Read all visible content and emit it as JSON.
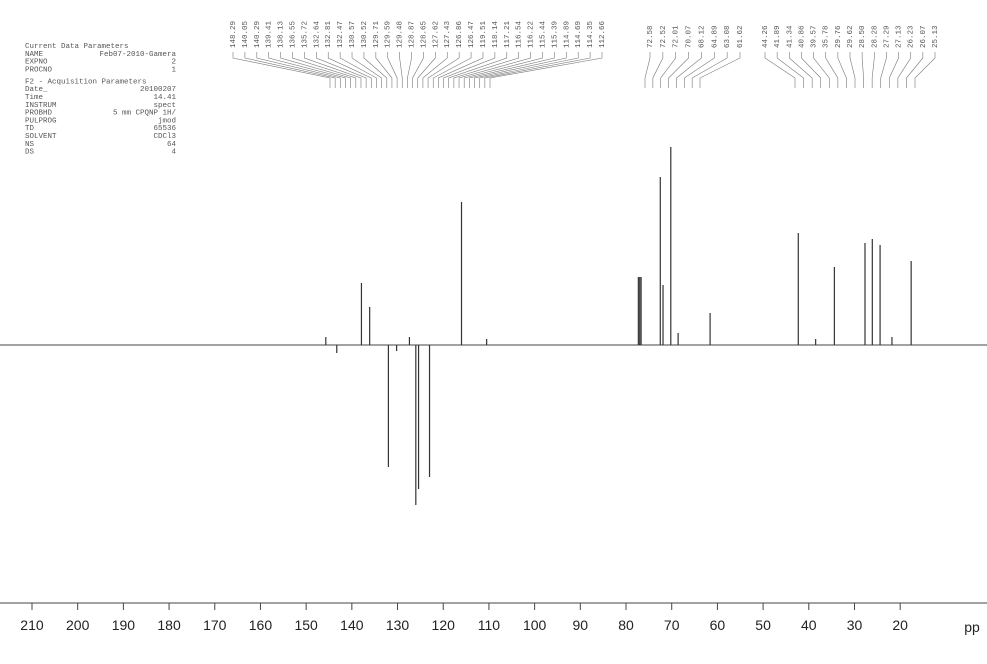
{
  "chart_data": {
    "type": "stick",
    "x_label": "pp",
    "xlim": [
      217,
      1
    ],
    "ylim": [
      -130,
      100
    ],
    "xticks": [
      210,
      200,
      190,
      180,
      170,
      160,
      150,
      140,
      130,
      120,
      110,
      100,
      90,
      80,
      70,
      60,
      50,
      40,
      30,
      20
    ],
    "color": "#333333",
    "x": [
      145.7,
      143.3,
      137.9,
      136.1,
      132.0,
      130.2,
      127.4,
      126.0,
      125.4,
      123.0,
      116.0,
      110.5,
      77.3,
      77.0,
      76.7,
      72.5,
      71.9,
      70.2,
      68.6,
      61.6,
      42.3,
      38.5,
      34.4,
      27.7,
      26.1,
      24.4,
      21.8,
      17.6
    ],
    "values": [
      4,
      -4,
      31,
      19,
      -61,
      -3,
      4,
      -80,
      -72,
      -66,
      71.5,
      3,
      34,
      34,
      34,
      84,
      30,
      99,
      6,
      16,
      56,
      3,
      39,
      51,
      53,
      50,
      4,
      42
    ],
    "peak_labels": [
      [
        "148.29",
        "140.05",
        "140.29",
        "139.41",
        "138.13",
        "136.55",
        "135.72",
        "132.64",
        "132.81",
        "132.47",
        "130.57",
        "130.52",
        "129.71",
        "129.59",
        "129.48",
        "128.87",
        "128.65",
        "127.62",
        "127.43",
        "126.86",
        "126.47",
        "119.51",
        "118.14",
        "117.21",
        "116.54",
        "116.22",
        "115.44",
        "115.39",
        "114.89",
        "114.69",
        "114.35",
        "112.66"
      ],
      [
        "72.58",
        "72.52",
        "72.01",
        "70.07",
        "68.12",
        "64.89",
        "63.08",
        "61.62"
      ],
      [
        "44.26",
        "41.89",
        "41.34",
        "40.86",
        "39.57",
        "35.78",
        "29.76",
        "29.62",
        "28.50",
        "28.28",
        "27.29",
        "27.13",
        "26.23",
        "26.07",
        "25.13"
      ]
    ]
  },
  "parameters": {
    "title": "Current Data Parameters",
    "rows": [
      [
        "NAME",
        "Feb07-2010-Gamera"
      ],
      [
        "EXPNO",
        "2"
      ],
      [
        "PROCNO",
        "1"
      ]
    ],
    "title2": "F2 - Acquisition Parameters",
    "rows2": [
      [
        "Date_",
        "20100207"
      ],
      [
        "Time",
        "14.41"
      ],
      [
        "INSTRUM",
        "spect"
      ],
      [
        "PROBHD",
        "5 mm CPQNP 1H/"
      ],
      [
        "PULPROG",
        "jmod"
      ],
      [
        "TD",
        "65536"
      ],
      [
        "SOLVENT",
        "CDCl3"
      ],
      [
        "NS",
        "64"
      ],
      [
        "DS",
        "4"
      ]
    ]
  }
}
